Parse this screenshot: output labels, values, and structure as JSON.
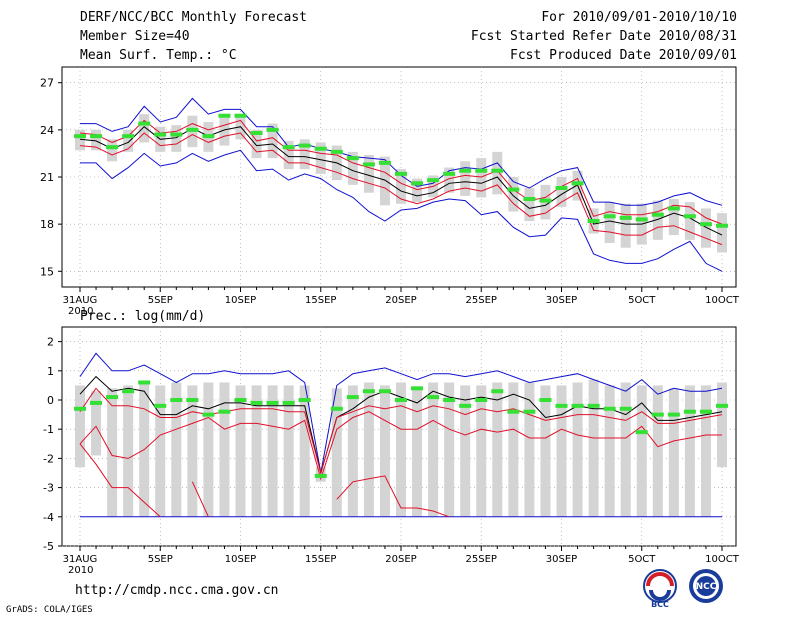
{
  "header": {
    "title": "DERF/NCC/BCC Monthly Forecast",
    "member_size": "Member Size=40",
    "variable": "Mean Surf. Temp.: °C",
    "period": "For 2010/09/01-2010/10/10",
    "started": "Fcst Started Refer Date 2010/08/31",
    "produced": "Fcst Produced Date 2010/09/01"
  },
  "footer": {
    "url": "http://cmdp.ncc.cma.gov.cn",
    "grads": "GrADS: COLA/IGES",
    "logo_bcc": "BCC",
    "logo_ncc": "NCC"
  },
  "colors": {
    "box": "#d4d4d4",
    "mean": "#000000",
    "std": "#e0102a",
    "range": "#1010d0",
    "obs": "#33e033"
  },
  "chart_data": [
    {
      "type": "line",
      "name": "temperature",
      "title": "Mean Surf. Temp.: °C",
      "ylim": [
        14,
        28
      ],
      "yticks": [
        15,
        18,
        21,
        24,
        27
      ],
      "xlabel_ticks": [
        "31AUG",
        "5SEP",
        "10SEP",
        "15SEP",
        "20SEP",
        "25SEP",
        "30SEP",
        "5OCT",
        "10OCT"
      ],
      "x_year": "2010",
      "days": 41,
      "series": [
        {
          "name": "ensemble max",
          "values": [
            24.4,
            24.4,
            23.9,
            24.2,
            25.5,
            24.5,
            24.8,
            26.0,
            25.0,
            25.3,
            25.3,
            24.2,
            24.2,
            22.9,
            23.1,
            22.8,
            22.6,
            22.3,
            22.2,
            22.1,
            21.1,
            20.4,
            20.6,
            21.4,
            21.6,
            21.5,
            21.9,
            20.7,
            20.3,
            20.9,
            21.4,
            21.6,
            19.4,
            19.4,
            19.2,
            19.2,
            19.4,
            19.8,
            20.0,
            19.5,
            19.2
          ]
        },
        {
          "name": "mean + std",
          "values": [
            23.8,
            23.7,
            23.2,
            23.6,
            24.6,
            23.8,
            23.9,
            24.4,
            24.0,
            24.3,
            24.6,
            23.3,
            23.5,
            22.7,
            22.7,
            22.5,
            22.4,
            21.9,
            21.6,
            21.3,
            20.6,
            20.2,
            20.4,
            20.9,
            21.1,
            21.0,
            21.4,
            20.2,
            19.5,
            19.7,
            20.4,
            20.9,
            18.5,
            18.8,
            18.6,
            18.6,
            18.8,
            19.2,
            19.1,
            18.4,
            18.0
          ]
        },
        {
          "name": "ensemble mean",
          "values": [
            23.4,
            23.3,
            22.8,
            23.2,
            24.2,
            23.4,
            23.5,
            24.1,
            23.6,
            24.0,
            24.2,
            23.0,
            23.1,
            22.3,
            22.3,
            22.1,
            21.9,
            21.4,
            21.1,
            20.8,
            20.1,
            19.8,
            20.0,
            20.6,
            20.7,
            20.6,
            21.0,
            19.8,
            19.0,
            19.2,
            19.9,
            20.5,
            18.0,
            18.2,
            18.0,
            18.0,
            18.3,
            18.7,
            18.4,
            17.8,
            17.3
          ]
        },
        {
          "name": "mean - std",
          "values": [
            23.0,
            22.9,
            22.4,
            22.8,
            23.8,
            23.0,
            23.1,
            23.7,
            23.2,
            23.6,
            23.8,
            22.6,
            22.7,
            21.9,
            21.9,
            21.6,
            21.3,
            20.9,
            20.6,
            20.3,
            19.6,
            19.3,
            19.6,
            20.1,
            20.3,
            20.1,
            20.5,
            19.3,
            18.5,
            18.7,
            19.4,
            20.0,
            17.6,
            17.5,
            17.3,
            17.3,
            17.8,
            17.9,
            17.5,
            17.1,
            16.7
          ]
        },
        {
          "name": "ensemble min",
          "values": [
            21.9,
            21.9,
            20.9,
            21.6,
            22.5,
            21.7,
            21.9,
            22.5,
            22.0,
            22.4,
            22.7,
            21.4,
            21.5,
            20.8,
            21.2,
            20.9,
            20.2,
            19.7,
            18.8,
            18.2,
            18.9,
            19.0,
            19.4,
            19.6,
            19.5,
            18.6,
            18.8,
            17.8,
            17.2,
            17.3,
            18.4,
            18.3,
            16.1,
            15.7,
            15.5,
            15.5,
            15.8,
            16.4,
            16.9,
            15.5,
            15.0
          ]
        },
        {
          "name": "observed/green",
          "values": [
            23.6,
            23.6,
            22.9,
            23.6,
            24.4,
            23.7,
            23.7,
            24.0,
            23.6,
            24.9,
            24.9,
            23.8,
            24.0,
            22.9,
            23.0,
            22.8,
            22.6,
            22.2,
            21.8,
            21.9,
            21.2,
            20.6,
            20.8,
            21.2,
            21.4,
            21.4,
            21.4,
            20.2,
            19.6,
            19.5,
            20.3,
            20.6,
            18.2,
            18.5,
            18.4,
            18.3,
            18.6,
            19.0,
            18.5,
            18.0,
            17.9
          ]
        }
      ],
      "box_top": [
        24.0,
        24.0,
        23.4,
        24.0,
        25.0,
        24.2,
        24.3,
        24.9,
        24.5,
        24.8,
        25.0,
        24.0,
        24.4,
        23.3,
        23.4,
        23.2,
        23.0,
        22.6,
        22.4,
        22.3,
        21.5,
        20.9,
        21.1,
        21.6,
        22.0,
        22.2,
        22.6,
        21.0,
        20.3,
        20.5,
        21.0,
        21.4,
        19.0,
        19.4,
        19.3,
        19.3,
        19.5,
        19.6,
        19.4,
        19.0,
        18.7
      ],
      "box_bottom": [
        22.7,
        22.7,
        22.0,
        22.6,
        23.2,
        22.6,
        22.6,
        22.9,
        22.6,
        23.0,
        23.4,
        22.2,
        22.2,
        21.5,
        21.5,
        21.2,
        20.8,
        20.5,
        20.0,
        19.2,
        19.3,
        19.4,
        19.7,
        20.0,
        19.8,
        19.7,
        19.9,
        18.8,
        18.2,
        18.3,
        19.1,
        19.5,
        17.4,
        16.8,
        16.5,
        16.7,
        17.0,
        17.3,
        17.0,
        16.5,
        16.2
      ]
    },
    {
      "type": "line",
      "name": "precipitation",
      "title": "Prec.: log(mm/d)",
      "ylim": [
        -5,
        2.5
      ],
      "yticks": [
        -5,
        -4,
        -3,
        -2,
        -1,
        0,
        1,
        2
      ],
      "xlabel_ticks": [
        "31AUG",
        "5SEP",
        "10SEP",
        "15SEP",
        "20SEP",
        "25SEP",
        "30SEP",
        "5OCT",
        "10OCT"
      ],
      "x_year": "2010",
      "days": 41,
      "series": [
        {
          "name": "ensemble max",
          "values": [
            0.8,
            1.6,
            1.0,
            1.0,
            1.2,
            0.9,
            0.6,
            0.9,
            0.9,
            1.0,
            0.9,
            0.9,
            0.9,
            1.0,
            0.6,
            -2.5,
            0.5,
            0.9,
            1.0,
            1.1,
            0.9,
            0.7,
            0.9,
            0.9,
            0.8,
            0.9,
            1.0,
            0.8,
            0.6,
            0.7,
            0.8,
            0.9,
            0.7,
            0.5,
            0.3,
            0.7,
            0.2,
            0.4,
            0.3,
            0.3,
            0.4
          ]
        },
        {
          "name": "ensemble mean",
          "values": [
            0.2,
            0.8,
            0.3,
            0.4,
            0.3,
            -0.5,
            -0.5,
            -0.2,
            -0.3,
            -0.1,
            -0.1,
            -0.2,
            -0.2,
            -0.2,
            -0.2,
            -2.5,
            -0.6,
            -0.3,
            0.1,
            0.3,
            0.1,
            -0.1,
            0.3,
            0.1,
            0.0,
            0.1,
            0.0,
            0.2,
            0.0,
            -0.6,
            -0.5,
            -0.2,
            -0.3,
            -0.3,
            -0.5,
            -0.1,
            -0.7,
            -0.7,
            -0.6,
            -0.5,
            -0.4
          ]
        },
        {
          "name": "mean + std",
          "values": [
            -0.4,
            0.4,
            -0.2,
            -0.2,
            -0.3,
            -0.6,
            -0.6,
            -0.4,
            -0.5,
            -0.4,
            -0.3,
            -0.3,
            -0.3,
            -0.4,
            -0.4,
            -2.5,
            -0.6,
            -0.4,
            -0.2,
            -0.3,
            -0.2,
            -0.4,
            -0.2,
            -0.3,
            -0.5,
            -0.3,
            -0.4,
            -0.3,
            -0.5,
            -0.7,
            -0.6,
            -0.5,
            -0.5,
            -0.6,
            -0.7,
            -0.4,
            -0.8,
            -0.8,
            -0.7,
            -0.6,
            -0.5
          ]
        },
        {
          "name": "mean - std",
          "values": [
            -1.5,
            -0.9,
            -1.9,
            -2.0,
            -1.7,
            -1.2,
            -1.0,
            -0.8,
            -0.6,
            -1.0,
            -0.8,
            -0.8,
            -0.9,
            -1.0,
            -0.7,
            -2.7,
            -1.0,
            -0.6,
            -0.4,
            -0.7,
            -1.0,
            -1.0,
            -0.7,
            -1.0,
            -1.2,
            -1.0,
            -1.1,
            -1.0,
            -1.3,
            -1.3,
            -1.0,
            -1.2,
            -1.3,
            -1.3,
            -1.3,
            -0.9,
            -1.6,
            -1.4,
            -1.3,
            -1.2,
            -1.2
          ]
        },
        {
          "name": "ensemble min",
          "values": [
            -4.0,
            -4.0,
            -4.0,
            -4.0,
            -4.0,
            -4.0,
            -4.0,
            -4.0,
            -4.0,
            -4.0,
            -4.0,
            -4.0,
            -4.0,
            -4.0,
            -4.0,
            -4.0,
            -4.0,
            -4.0,
            -4.0,
            -4.0,
            -4.0,
            -4.0,
            -4.0,
            -4.0,
            -4.0,
            -4.0,
            -4.0,
            -4.0,
            -4.0,
            -4.0,
            -4.0,
            -4.0,
            -4.0,
            -4.0,
            -4.0,
            -4.0,
            -4.0,
            -4.0,
            -4.0,
            -4.0,
            -4.0
          ]
        },
        {
          "name": "lower extreme (red)",
          "values": [
            -1.5,
            -2.2,
            -3.0,
            -3.0,
            -3.5,
            -4.0,
            null,
            -2.8,
            -4.0,
            null,
            null,
            null,
            null,
            null,
            null,
            null,
            -3.4,
            -2.8,
            -2.7,
            -2.6,
            -3.7,
            -3.7,
            -3.8,
            -4.0,
            null,
            null,
            null,
            null,
            null,
            null,
            null,
            null,
            null,
            null,
            null,
            null,
            null,
            null,
            null,
            null,
            null
          ]
        },
        {
          "name": "observed/green",
          "values": [
            -0.3,
            -0.1,
            0.1,
            0.3,
            0.6,
            -0.2,
            0.0,
            0.0,
            -0.5,
            -0.4,
            0.0,
            -0.1,
            -0.1,
            -0.1,
            0.0,
            -2.6,
            -0.3,
            0.1,
            0.3,
            0.3,
            0.0,
            0.4,
            0.1,
            0.0,
            -0.2,
            0.0,
            0.3,
            -0.4,
            -0.4,
            0.0,
            -0.2,
            -0.2,
            -0.2,
            -0.3,
            -0.3,
            -1.1,
            -0.5,
            -0.5,
            -0.4,
            -0.4,
            -0.2
          ]
        }
      ],
      "box_top": [
        0.5,
        0.3,
        0.4,
        0.5,
        0.6,
        0.5,
        0.6,
        0.5,
        0.6,
        0.6,
        0.5,
        0.5,
        0.5,
        0.5,
        0.5,
        -2.3,
        0.4,
        0.5,
        0.6,
        0.5,
        0.6,
        0.4,
        0.6,
        0.6,
        0.5,
        0.5,
        0.6,
        0.6,
        0.6,
        0.5,
        0.5,
        0.6,
        0.7,
        0.5,
        0.6,
        0.5,
        0.5,
        0.4,
        0.5,
        0.5,
        0.6
      ],
      "box_bottom": [
        -2.3,
        -1.9,
        -4.0,
        -4.0,
        -4.0,
        -4.0,
        -4.0,
        -4.0,
        -4.0,
        -4.0,
        -4.0,
        -4.0,
        -4.0,
        -4.0,
        -4.0,
        -2.8,
        -4.0,
        -4.0,
        -4.0,
        -4.0,
        -4.0,
        -4.0,
        -4.0,
        -4.0,
        -4.0,
        -4.0,
        -4.0,
        -4.0,
        -4.0,
        -4.0,
        -4.0,
        -4.0,
        -4.0,
        -4.0,
        -4.0,
        -4.0,
        -4.0,
        -4.0,
        -4.0,
        -4.0,
        -2.3
      ]
    }
  ]
}
